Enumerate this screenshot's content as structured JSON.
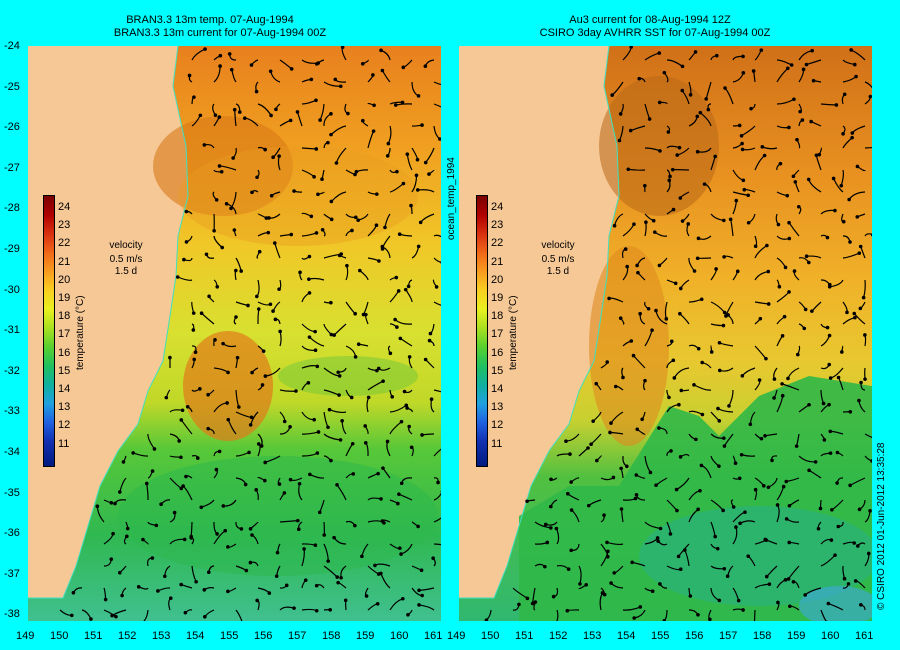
{
  "left_panel": {
    "title_line1": "BRAN3.3 13m temp. 07-Aug-1994",
    "title_line2": "BRAN3.3 13m current for 07-Aug-1994 00Z"
  },
  "right_panel": {
    "title_line1": "Au3 current for 08-Aug-1994 12Z",
    "title_line2": "CSIRO 3day AVHRR SST for 07-Aug-1994 00Z"
  },
  "lat_labels": [
    "-24",
    "-25",
    "-26",
    "-27",
    "-28",
    "-29",
    "-30",
    "-31",
    "-32",
    "-33",
    "-34",
    "-35",
    "-36",
    "-37",
    "-38"
  ],
  "lon_labels": [
    "149",
    "150",
    "151",
    "152",
    "153",
    "154",
    "155",
    "156",
    "157",
    "158",
    "159",
    "160",
    "161"
  ],
  "colorbar": {
    "labels": [
      "24",
      "23",
      "22",
      "21",
      "20",
      "19",
      "18",
      "17",
      "16",
      "15",
      "14",
      "13",
      "12",
      "11"
    ],
    "title": "temperature (°C)"
  },
  "velocity_legend": {
    "title": "velocity",
    "speed": "0.5 m/s",
    "duration": "1.5 d"
  },
  "side_label": "ocean_temp_1994",
  "credit": "© CSIRO 2012  01-Jun-2012 13:35:28",
  "colors": {
    "land": "#f6c896",
    "background": "#00ffff",
    "warm": "#e8801e",
    "cool": "#2fb845",
    "coast_line": "#40e0c0"
  }
}
